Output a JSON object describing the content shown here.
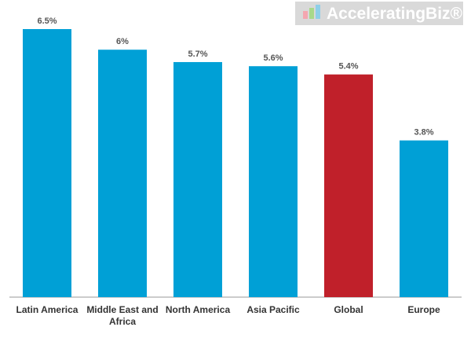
{
  "chart_data": {
    "type": "bar",
    "logo": "AcceleratingBiz®",
    "categories": [
      "Latin America",
      "Middle East and Africa",
      "North America",
      "Asia Pacific",
      "Global",
      "Europe"
    ],
    "values": [
      6.5,
      6,
      5.7,
      5.6,
      5.4,
      3.8
    ],
    "value_labels": [
      "6.5%",
      "6%",
      "5.7%",
      "5.6%",
      "5.4%",
      "3.8%"
    ],
    "colors": [
      "#00a0d6",
      "#00a0d6",
      "#00a0d6",
      "#00a0d6",
      "#c0202a",
      "#00a0d6"
    ],
    "ylim": [
      0,
      6.5
    ]
  }
}
